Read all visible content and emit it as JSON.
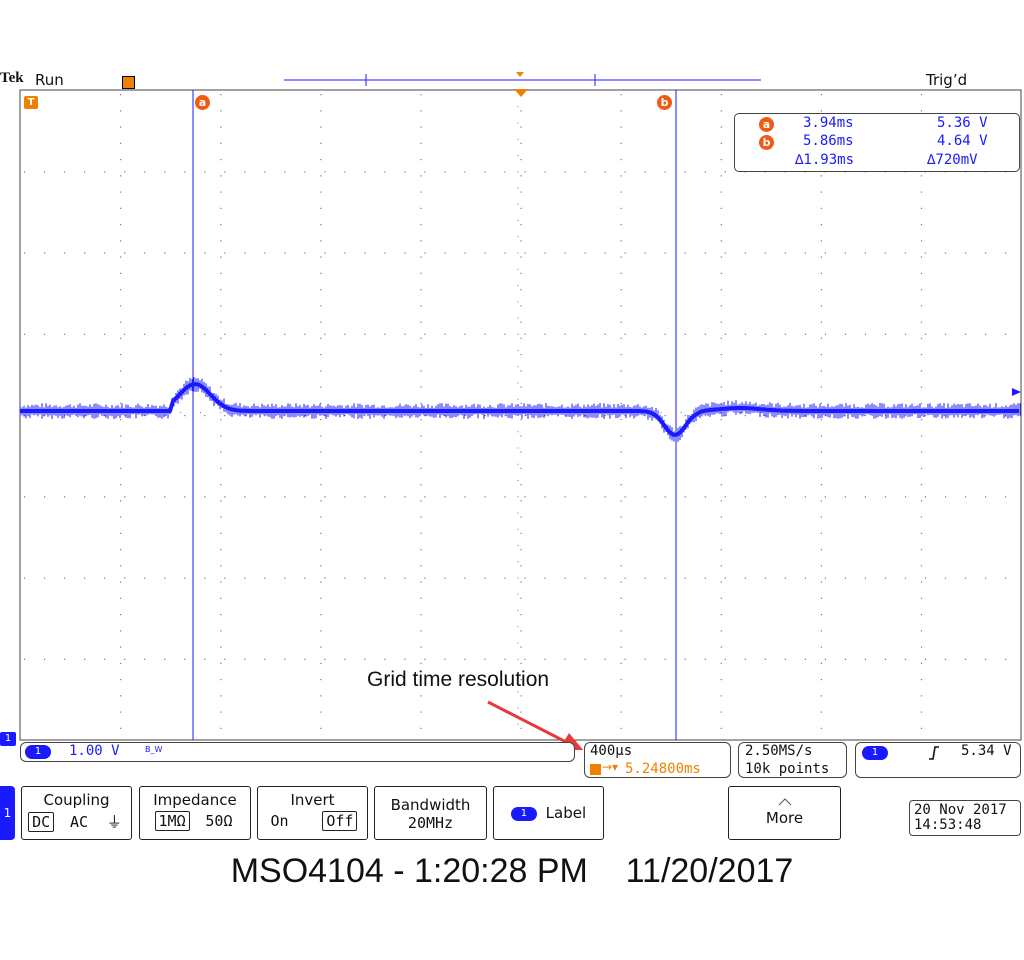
{
  "header": {
    "brand": "Tek",
    "state": "Run",
    "trigger_status": "Trig’d"
  },
  "cursors": {
    "a_label": "a",
    "b_label": "b",
    "readout": {
      "a_time": "3.94ms",
      "a_volt": "5.36 V",
      "b_time": "5.86ms",
      "b_volt": "4.64 V",
      "delta_time": "∆1.93ms",
      "delta_volt": "∆720mV"
    }
  },
  "annotation": {
    "text": "Grid time resolution"
  },
  "status_bar": {
    "channel": {
      "number": "1",
      "scale": "1.00 V",
      "bw_marker": "B_W"
    },
    "timebase": {
      "scale": "400µs",
      "position": "5.24800ms"
    },
    "acquisition": {
      "rate": "2.50MS/s",
      "points": "10k points"
    },
    "trigger": {
      "channel": "1",
      "slope_icon": "rising-edge-icon",
      "level": "5.34 V"
    }
  },
  "menu": {
    "side_tab": "1",
    "coupling": {
      "label": "Coupling",
      "options": [
        "DC",
        "AC",
        "⏚"
      ],
      "selected": "DC"
    },
    "impedance": {
      "label": "Impedance",
      "options": [
        "1MΩ",
        "50Ω"
      ],
      "selected": "1MΩ"
    },
    "invert": {
      "label": "Invert",
      "options": [
        "On",
        "Off"
      ],
      "selected": "Off"
    },
    "bandwidth": {
      "label": "Bandwidth",
      "value": "20MHz"
    },
    "label_btn": {
      "channel": "1",
      "label": "Label"
    },
    "more": {
      "label": "More"
    },
    "datetime": {
      "date": "20 Nov 2017",
      "time": "14:53:48"
    }
  },
  "caption": "MSO4104 - 1:20:28 PM    11/20/2017",
  "colors": {
    "trace": "#1a1aff",
    "cursor_badge": "#f05a14",
    "trigger_marker": "#f08000",
    "annotation_arrow": "#e83a3a"
  }
}
